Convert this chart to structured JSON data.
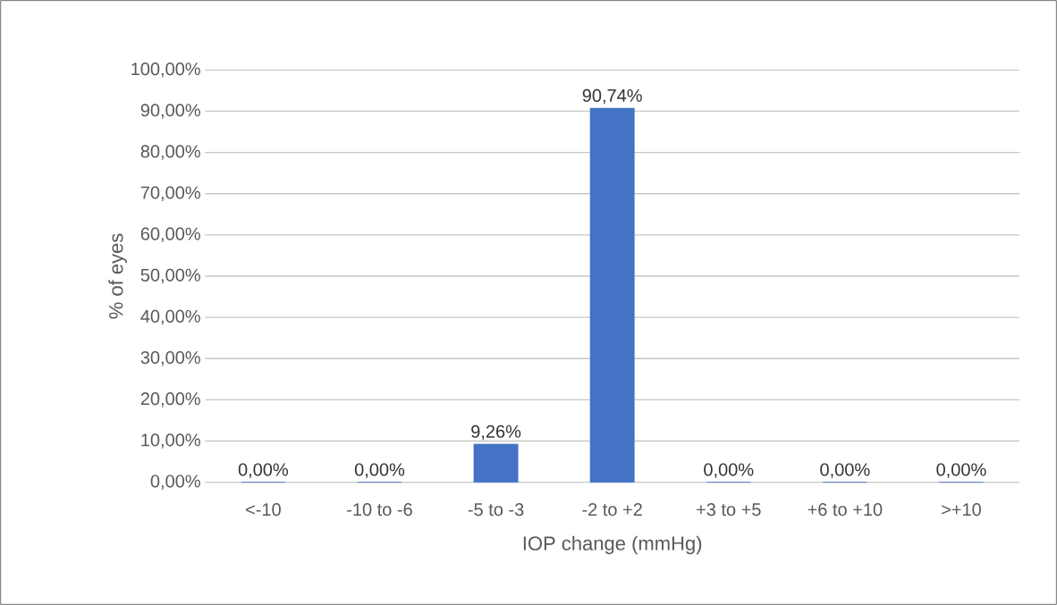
{
  "chart_data": {
    "type": "bar",
    "xlabel": "IOP change (mmHg)",
    "ylabel": "% of eyes",
    "categories": [
      "<-10",
      "-10 to -6",
      "-5 to -3",
      "-2 to +2",
      "+3 to +5",
      "+6 to +10",
      ">+10"
    ],
    "values": [
      0,
      0,
      9.26,
      90.74,
      0,
      0,
      0
    ],
    "value_labels": [
      "0,00%",
      "0,00%",
      "9,26%",
      "90,74%",
      "0,00%",
      "0,00%",
      "0,00%"
    ],
    "color": "#4472c4",
    "ylim": [
      0,
      100
    ],
    "yticks": [
      {
        "value": 0,
        "label": "0,00%"
      },
      {
        "value": 10,
        "label": "10,00%"
      },
      {
        "value": 20,
        "label": "20,00%"
      },
      {
        "value": 30,
        "label": "30,00%"
      },
      {
        "value": 40,
        "label": "40,00%"
      },
      {
        "value": 50,
        "label": "50,00%"
      },
      {
        "value": 60,
        "label": "60,00%"
      },
      {
        "value": 70,
        "label": "70,00%"
      },
      {
        "value": 80,
        "label": "80,00%"
      },
      {
        "value": 90,
        "label": "90,00%"
      },
      {
        "value": 100,
        "label": "100,00%"
      }
    ],
    "grid": "y"
  }
}
